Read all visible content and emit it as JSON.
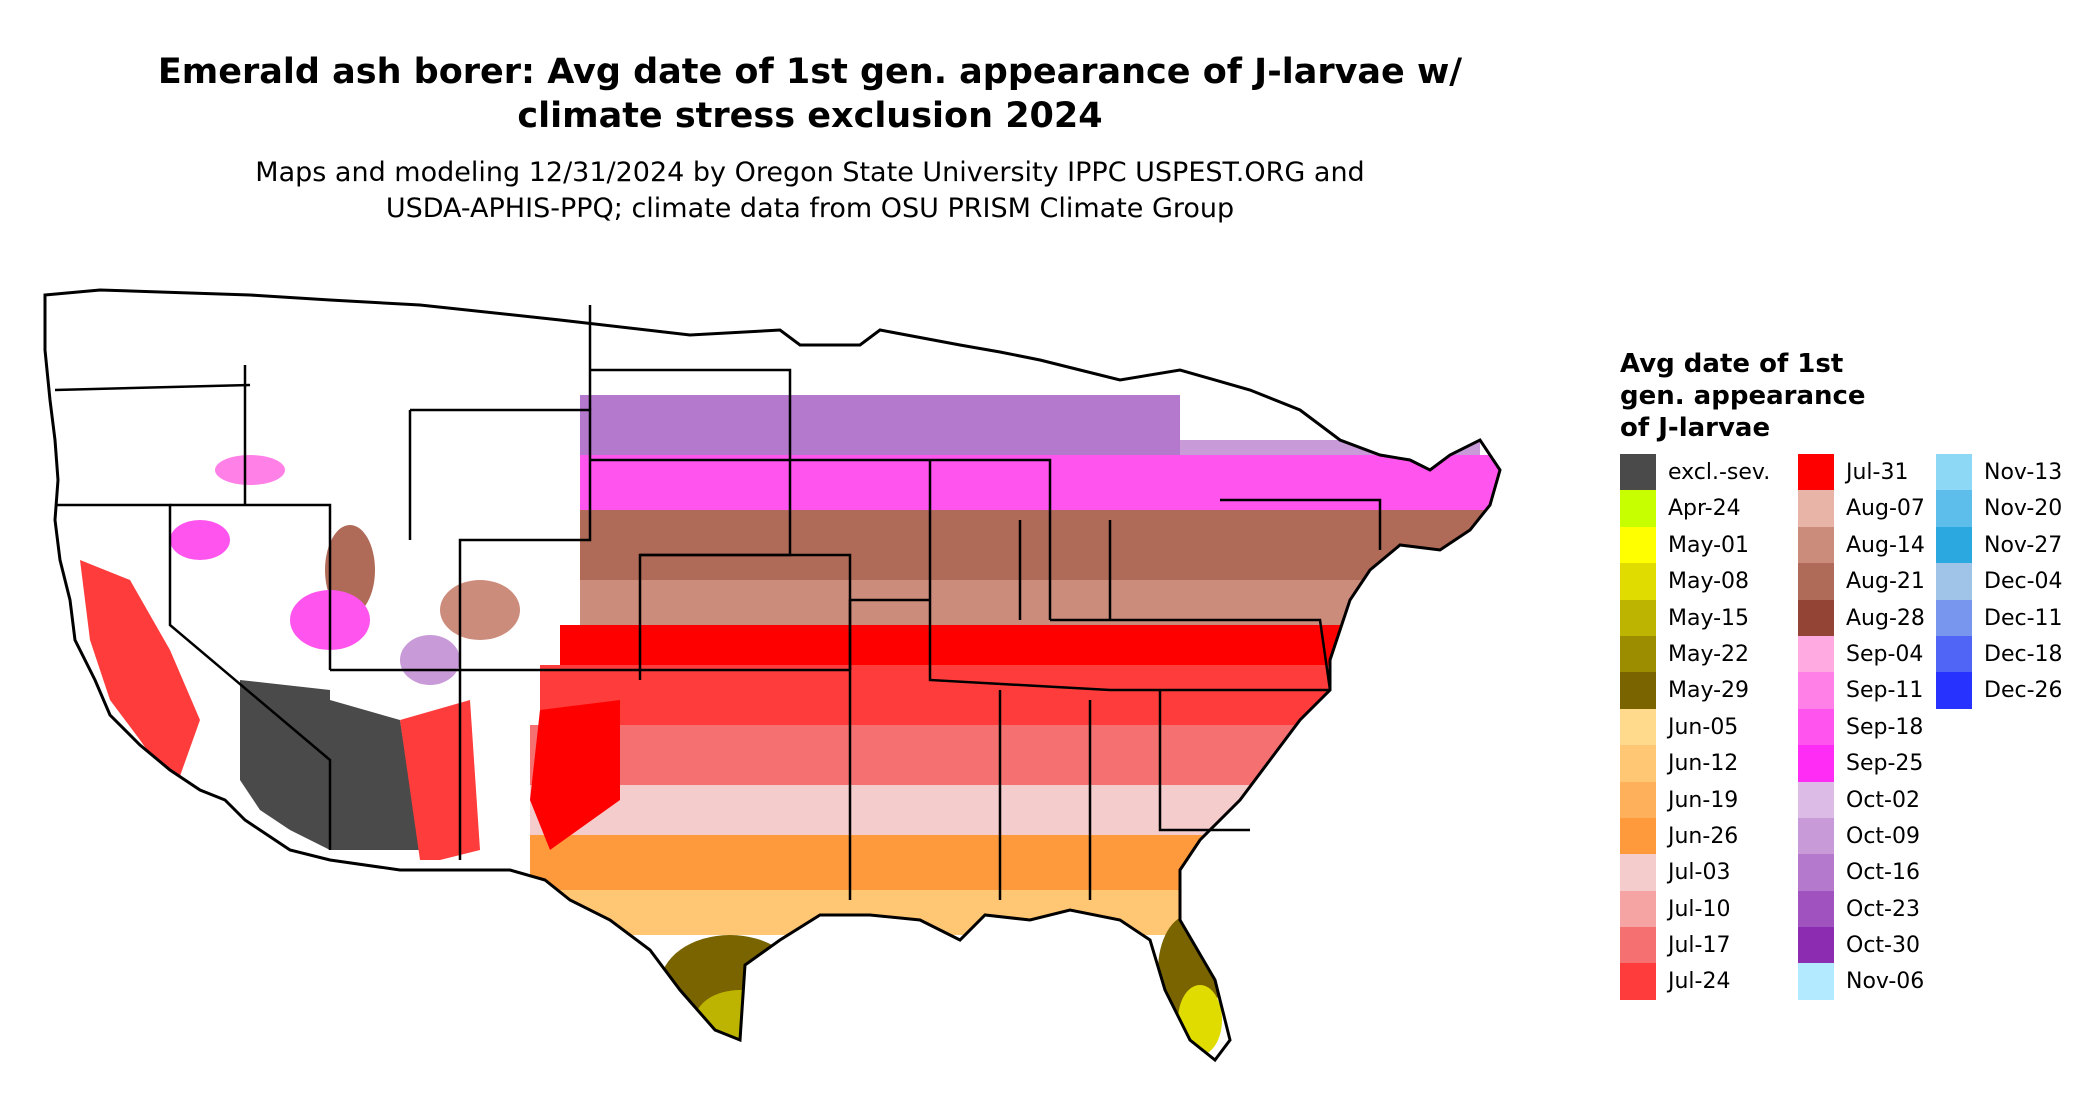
{
  "title": {
    "line1": "Emerald ash borer: Avg date of 1st gen. appearance of J-larvae w/",
    "line2": "climate stress exclusion 2024"
  },
  "subtitle": {
    "line1": "Maps and modeling 12/31/2024 by Oregon State University IPPC USPEST.ORG and",
    "line2": "USDA-APHIS-PPQ; climate data from OSU PRISM Climate Group"
  },
  "legend": {
    "title_lines": [
      "Avg date of 1st",
      "gen. appearance",
      "of J-larvae"
    ],
    "columns": [
      [
        {
          "label": "excl.-sev.",
          "color": "#4a4a4a"
        },
        {
          "label": "Apr-24",
          "color": "#c8ff00"
        },
        {
          "label": "May-01",
          "color": "#ffff00"
        },
        {
          "label": "May-08",
          "color": "#e0dc00"
        },
        {
          "label": "May-15",
          "color": "#bcb400"
        },
        {
          "label": "May-22",
          "color": "#9c8c00"
        },
        {
          "label": "May-29",
          "color": "#7a6400"
        },
        {
          "label": "Jun-05",
          "color": "#ffd98c"
        },
        {
          "label": "Jun-12",
          "color": "#ffc673"
        },
        {
          "label": "Jun-19",
          "color": "#ffb05a"
        },
        {
          "label": "Jun-26",
          "color": "#ff9a3c"
        },
        {
          "label": "Jul-03",
          "color": "#f5cccc"
        },
        {
          "label": "Jul-10",
          "color": "#f5a3a3"
        },
        {
          "label": "Jul-17",
          "color": "#f57070"
        },
        {
          "label": "Jul-24",
          "color": "#ff3c3c"
        }
      ],
      [
        {
          "label": "Jul-31",
          "color": "#ff0000"
        },
        {
          "label": "Aug-07",
          "color": "#e8b4a8"
        },
        {
          "label": "Aug-14",
          "color": "#cc8c7c"
        },
        {
          "label": "Aug-21",
          "color": "#b06a58"
        },
        {
          "label": "Aug-28",
          "color": "#944434"
        },
        {
          "label": "Sep-04",
          "color": "#ffaae0"
        },
        {
          "label": "Sep-11",
          "color": "#ff80e6"
        },
        {
          "label": "Sep-18",
          "color": "#ff55ee"
        },
        {
          "label": "Sep-25",
          "color": "#ff2cf5"
        },
        {
          "label": "Oct-02",
          "color": "#dcbce6"
        },
        {
          "label": "Oct-09",
          "color": "#c89ad8"
        },
        {
          "label": "Oct-16",
          "color": "#b478cc"
        },
        {
          "label": "Oct-23",
          "color": "#a052be"
        },
        {
          "label": "Oct-30",
          "color": "#8c2cb0"
        },
        {
          "label": "Nov-06",
          "color": "#b4eaff"
        }
      ],
      [
        {
          "label": "Nov-13",
          "color": "#8cd8f5"
        },
        {
          "label": "Nov-20",
          "color": "#5ebeeb"
        },
        {
          "label": "Nov-27",
          "color": "#2ca8e0"
        },
        {
          "label": "Dec-04",
          "color": "#a0c4e8"
        },
        {
          "label": "Dec-11",
          "color": "#7896ee"
        },
        {
          "label": "Dec-18",
          "color": "#5064f5"
        },
        {
          "label": "Dec-26",
          "color": "#2832ff"
        }
      ]
    ]
  }
}
